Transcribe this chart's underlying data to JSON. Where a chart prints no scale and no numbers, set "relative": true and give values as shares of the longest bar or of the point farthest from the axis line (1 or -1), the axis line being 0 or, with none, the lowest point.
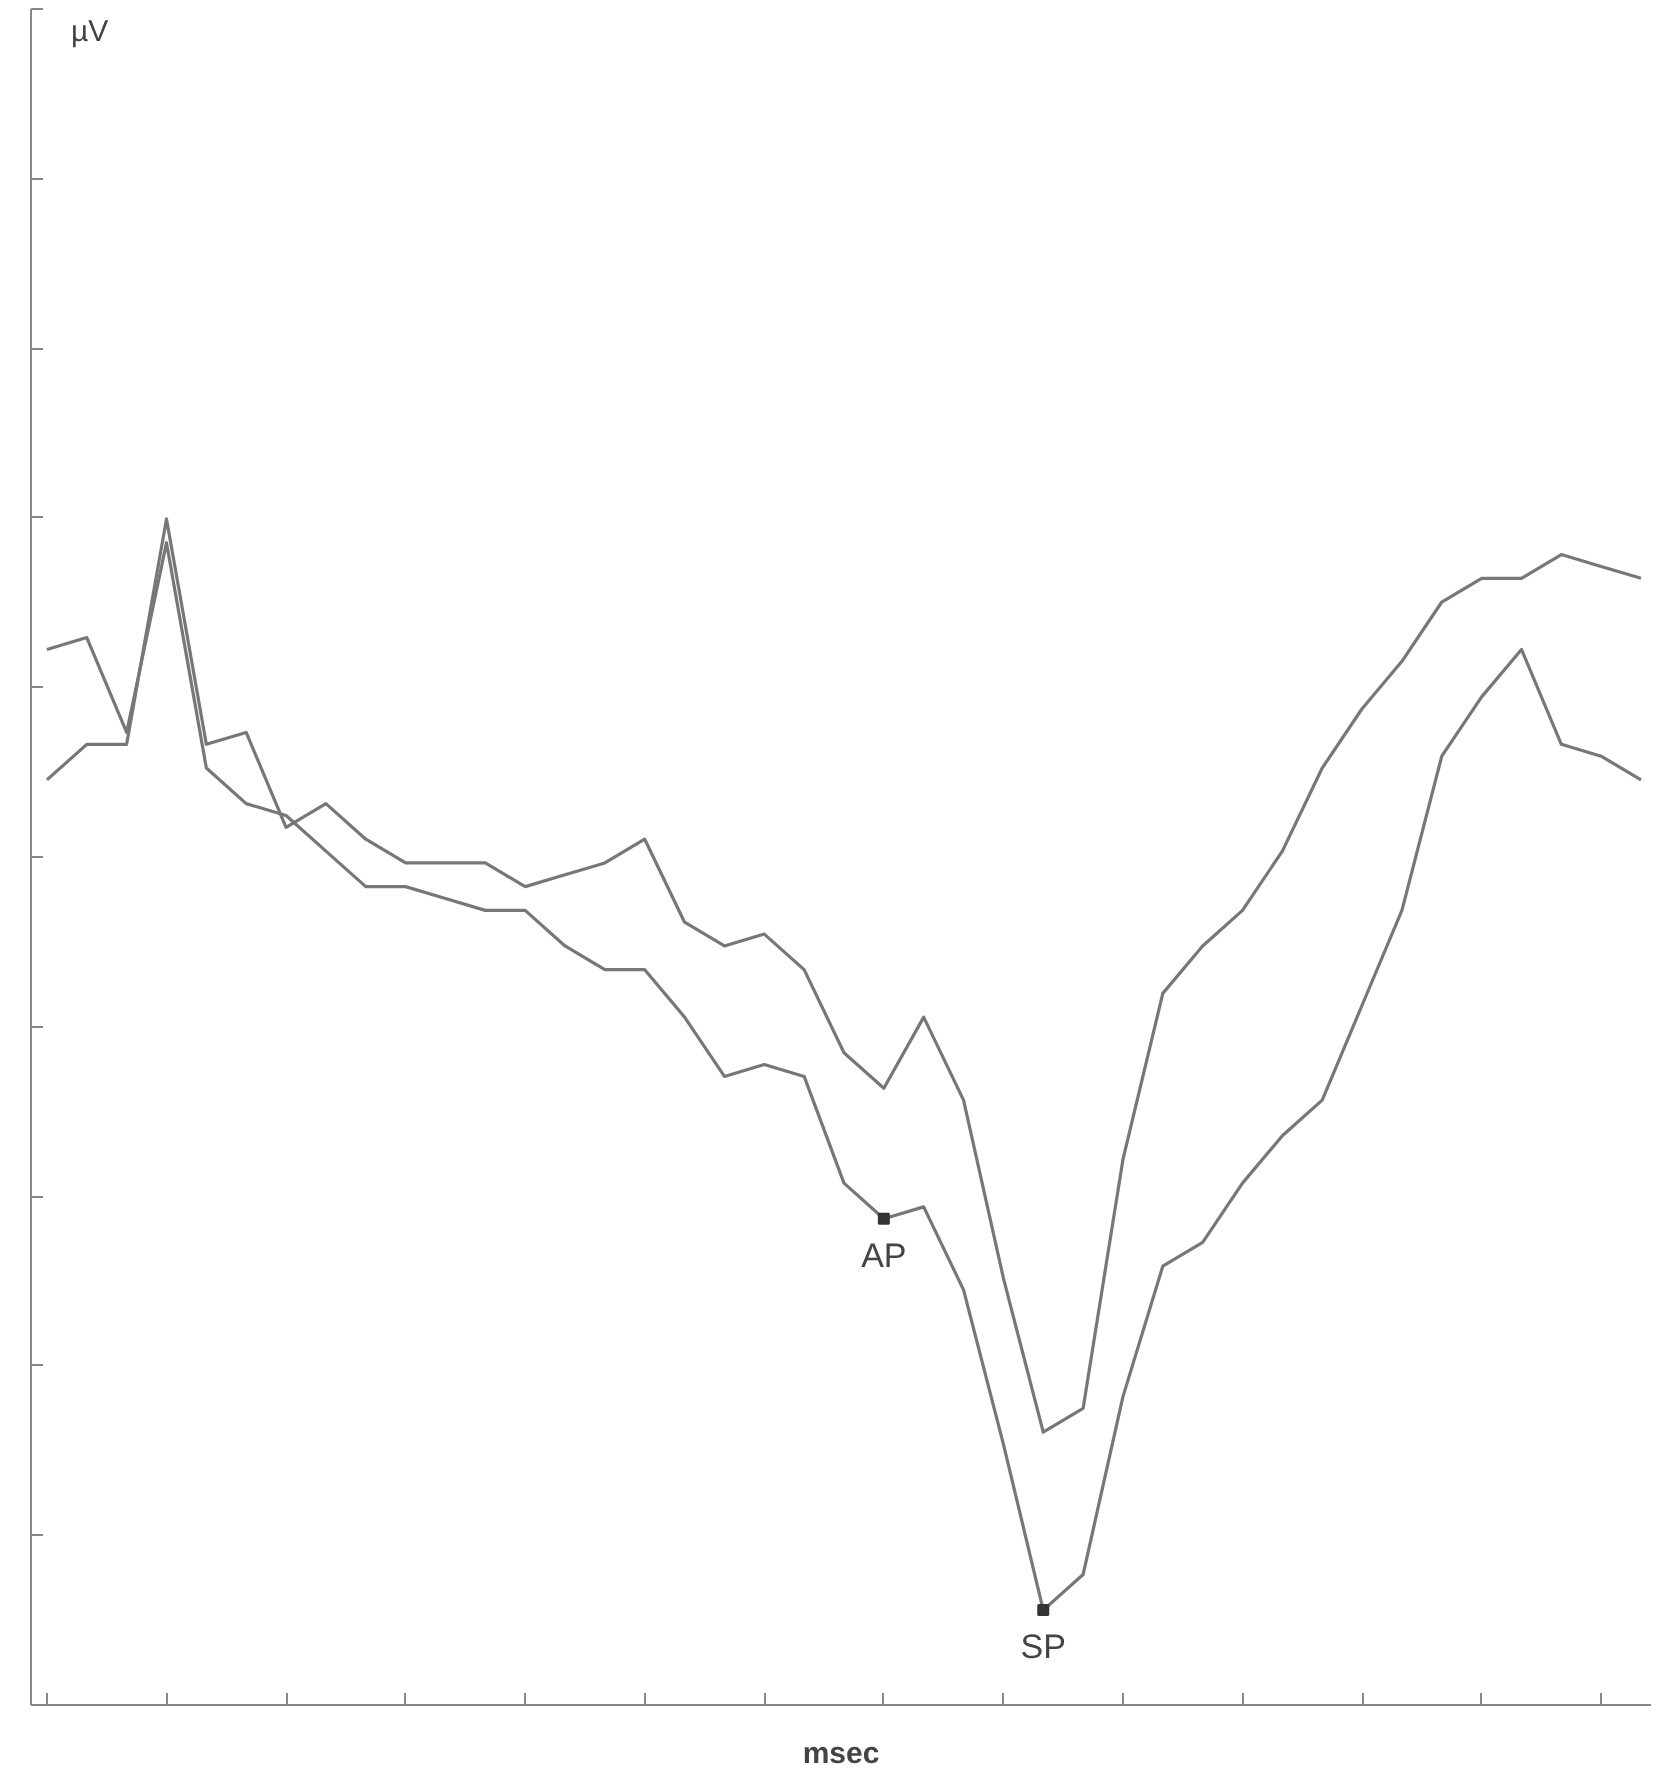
{
  "chart_data": {
    "type": "line",
    "relative": true,
    "xlabel": "msec",
    "categories": [
      null,
      null,
      null,
      null,
      null,
      null,
      null,
      null,
      null,
      null,
      null,
      null,
      null,
      null,
      null,
      null,
      null,
      null,
      null,
      null,
      null,
      null,
      null,
      null,
      null,
      null,
      null,
      null,
      null,
      null,
      null,
      null,
      null,
      null,
      null,
      null,
      null,
      null,
      null,
      null,
      null
    ],
    "series": [
      {
        "color": "#777777",
        "values": [
          0.78,
          0.81,
          0.81,
          1.0,
          0.81,
          0.82,
          0.74,
          0.76,
          0.73,
          0.71,
          0.71,
          0.71,
          0.69,
          0.7,
          0.71,
          0.73,
          0.66,
          0.64,
          0.65,
          0.62,
          0.55,
          0.52,
          0.58,
          0.51,
          0.36,
          0.23,
          0.25,
          0.46,
          0.6,
          0.64,
          0.67,
          0.72,
          0.79,
          0.84,
          0.88,
          0.93,
          0.95,
          0.95,
          0.97,
          0.96,
          0.95
        ]
      },
      {
        "color": "#777777",
        "values": [
          0.89,
          0.9,
          0.82,
          0.98,
          0.79,
          0.76,
          0.75,
          0.72,
          0.69,
          0.69,
          0.68,
          0.67,
          0.67,
          0.64,
          0.62,
          0.62,
          0.58,
          0.53,
          0.54,
          0.53,
          0.44,
          0.41,
          0.42,
          0.35,
          0.22,
          0.08,
          0.11,
          0.26,
          0.37,
          0.39,
          0.44,
          0.48,
          0.51,
          0.59,
          0.67,
          0.8,
          0.85,
          0.89,
          0.81,
          0.8,
          0.78
        ]
      }
    ],
    "annotations": [
      "µV",
      {
        "text": "AP",
        "y": 0.41
      },
      {
        "text": "SP",
        "y": 0.08
      }
    ],
    "line_style": "solid",
    "grid": false
  }
}
